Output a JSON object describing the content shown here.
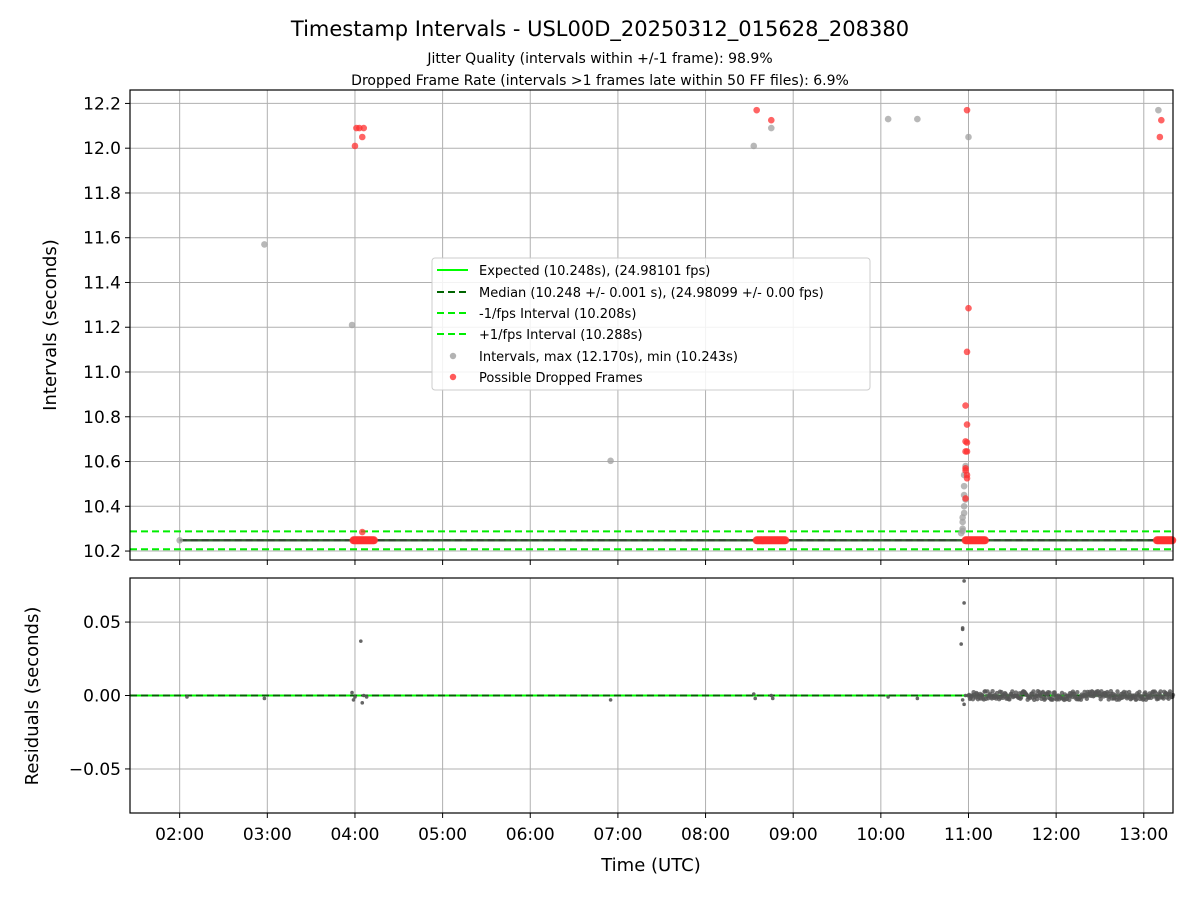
{
  "figure": {
    "title": "Timestamp Intervals - USL00D_20250312_015628_208380",
    "subtitle_1": "Jitter Quality (intervals within +/-1 frame): 98.9%",
    "subtitle_2": "Dropped Frame Rate (intervals >1 frames late within 50 FF files): 6.9%"
  },
  "colors": {
    "expected": "#00ff00",
    "median": "#006400",
    "interval_band": "#00ee00",
    "intervals": "#a0a0a0",
    "dropped": "#ff3030",
    "residuals": "#555555",
    "grid": "#b0b0b0"
  },
  "chart_data": [
    {
      "type": "scatter",
      "panel": "intervals",
      "ylabel": "Intervals (seconds)",
      "xlabel": "",
      "xlim": [
        "01:26",
        "13:20"
      ],
      "ylim": [
        10.16,
        12.26
      ],
      "yticks": [
        "10.2",
        "10.4",
        "10.6",
        "10.8",
        "11.0",
        "11.2",
        "11.4",
        "11.6",
        "11.8",
        "12.0",
        "12.2"
      ],
      "grid": true,
      "legend_position": "center",
      "reference_lines": [
        {
          "name": "Expected (10.248s), (24.98101 fps)",
          "y": 10.248,
          "style": "solid"
        },
        {
          "name": "Median (10.248 +/- 0.001 s), (24.98099 +/- 0.00 fps)",
          "y": 10.248,
          "style": "dashed"
        },
        {
          "name": "-1/fps Interval (10.208s)",
          "y": 10.208,
          "style": "dashed"
        },
        {
          "name": "+1/fps Interval (10.288s)",
          "y": 10.288,
          "style": "dashed"
        }
      ],
      "series": [
        {
          "name": "Intervals, max (12.170s), min (10.243s)",
          "points": [
            [
              "02:00",
              10.248
            ],
            [
              "02:58",
              11.57
            ],
            [
              "03:58",
              11.21
            ],
            [
              "04:00",
              10.248
            ],
            [
              "06:55",
              10.603
            ],
            [
              "08:33",
              12.01
            ],
            [
              "08:45",
              12.09
            ],
            [
              "10:05",
              12.13
            ],
            [
              "10:25",
              12.13
            ],
            [
              "11:00",
              12.05
            ],
            [
              "13:10",
              12.17
            ],
            [
              "10:56",
              10.29
            ],
            [
              "10:56",
              10.3
            ],
            [
              "10:56",
              10.33
            ],
            [
              "10:56",
              10.35
            ],
            [
              "10:57",
              10.37
            ],
            [
              "10:57",
              10.4
            ],
            [
              "10:57",
              10.45
            ],
            [
              "10:57",
              10.49
            ],
            [
              "10:57",
              10.54
            ],
            [
              "10:58",
              10.58
            ],
            [
              "10:58",
              10.43
            ],
            [
              "10:55",
              10.28
            ]
          ]
        },
        {
          "name": "Possible Dropped Frames",
          "points": [
            [
              "04:00",
              12.01
            ],
            [
              "04:01",
              12.09
            ],
            [
              "04:03",
              12.09
            ],
            [
              "04:05",
              12.05
            ],
            [
              "04:06",
              12.09
            ],
            [
              "04:05",
              10.285
            ],
            [
              "08:35",
              12.17
            ],
            [
              "08:45",
              12.125
            ],
            [
              "10:59",
              12.17
            ],
            [
              "11:00",
              11.285
            ],
            [
              "10:59",
              11.09
            ],
            [
              "10:58",
              10.85
            ],
            [
              "10:59",
              10.765
            ],
            [
              "10:58",
              10.69
            ],
            [
              "10:59",
              10.685
            ],
            [
              "10:58",
              10.645
            ],
            [
              "10:59",
              10.645
            ],
            [
              "10:58",
              10.57
            ],
            [
              "10:58",
              10.56
            ],
            [
              "10:59",
              10.54
            ],
            [
              "10:59",
              10.525
            ],
            [
              "10:58",
              10.435
            ],
            [
              "13:12",
              12.125
            ],
            [
              "13:11",
              12.05
            ]
          ],
          "dense_runs": [
            {
              "from": "03:59",
              "to": "04:13",
              "y": 10.248
            },
            {
              "from": "08:35",
              "to": "08:55",
              "y": 10.248
            },
            {
              "from": "10:58",
              "to": "11:12",
              "y": 10.248
            },
            {
              "from": "13:09",
              "to": "13:20",
              "y": 10.248
            }
          ]
        }
      ]
    },
    {
      "type": "scatter",
      "panel": "residuals",
      "ylabel": "Residuals (seconds)",
      "xlabel": "Time (UTC)",
      "xlim": [
        "01:26",
        "13:20"
      ],
      "ylim": [
        -0.08,
        0.08
      ],
      "yticks": [
        "−0.05",
        "0.00",
        "0.05"
      ],
      "xticks": [
        "02:00",
        "03:00",
        "04:00",
        "05:00",
        "06:00",
        "07:00",
        "08:00",
        "09:00",
        "10:00",
        "11:00",
        "12:00",
        "13:00"
      ],
      "grid": true,
      "series": [
        {
          "name": "Residuals",
          "points": [
            [
              "02:05",
              -0.001
            ],
            [
              "02:58",
              -0.002
            ],
            [
              "03:58",
              0.002
            ],
            [
              "03:59",
              -0.003
            ],
            [
              "04:00",
              -0.001
            ],
            [
              "04:04",
              0.037
            ],
            [
              "04:05",
              -0.005
            ],
            [
              "04:06",
              0.0
            ],
            [
              "04:08",
              -0.001
            ],
            [
              "06:55",
              -0.003
            ],
            [
              "08:33",
              0.001
            ],
            [
              "08:34",
              -0.002
            ],
            [
              "08:45",
              0.0
            ],
            [
              "08:46",
              -0.002
            ],
            [
              "10:05",
              -0.001
            ],
            [
              "10:25",
              -0.002
            ],
            [
              "10:55",
              0.035
            ],
            [
              "10:56",
              0.045
            ],
            [
              "10:56",
              0.046
            ],
            [
              "10:57",
              0.063
            ],
            [
              "10:57",
              0.078
            ],
            [
              "10:57",
              -0.006
            ],
            [
              "10:56",
              -0.003
            ],
            [
              "10:58",
              0.0
            ]
          ],
          "dense_band": {
            "from": "11:00",
            "to": "13:20",
            "low": -0.003,
            "high": 0.003
          }
        }
      ]
    }
  ]
}
